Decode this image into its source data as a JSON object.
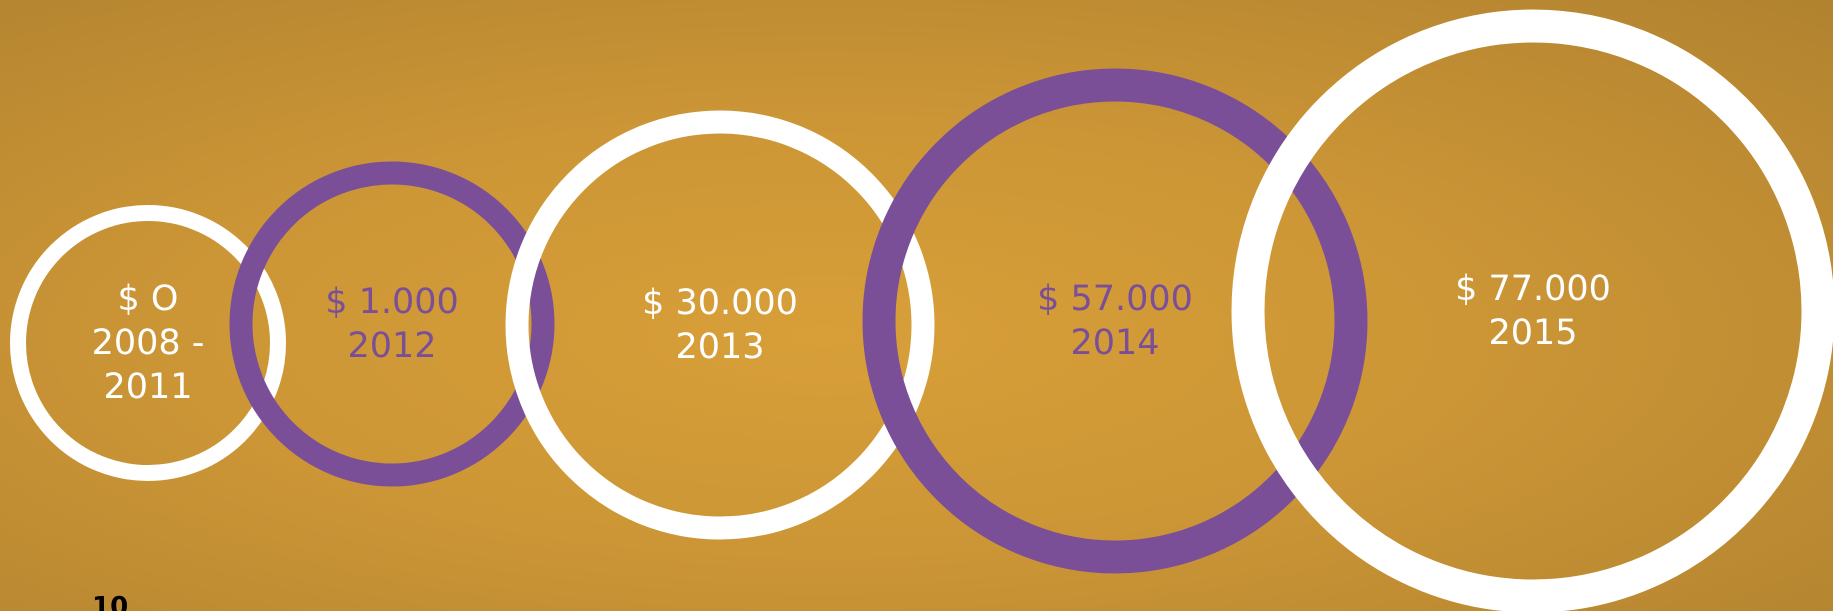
{
  "circles": [
    {
      "amount": "$ O",
      "year": "2008 - 2011",
      "color": "#ffffff"
    },
    {
      "amount": "$ 1.000",
      "year": "2012",
      "color": "#7a4f98"
    },
    {
      "amount": "$ 30.000",
      "year": "2013",
      "color": "#ffffff"
    },
    {
      "amount": "$ 57.000",
      "year": "2014",
      "color": "#7a4f98"
    },
    {
      "amount": "$ 77.000",
      "year": "2015",
      "color": "#ffffff"
    }
  ],
  "page_number": "10"
}
